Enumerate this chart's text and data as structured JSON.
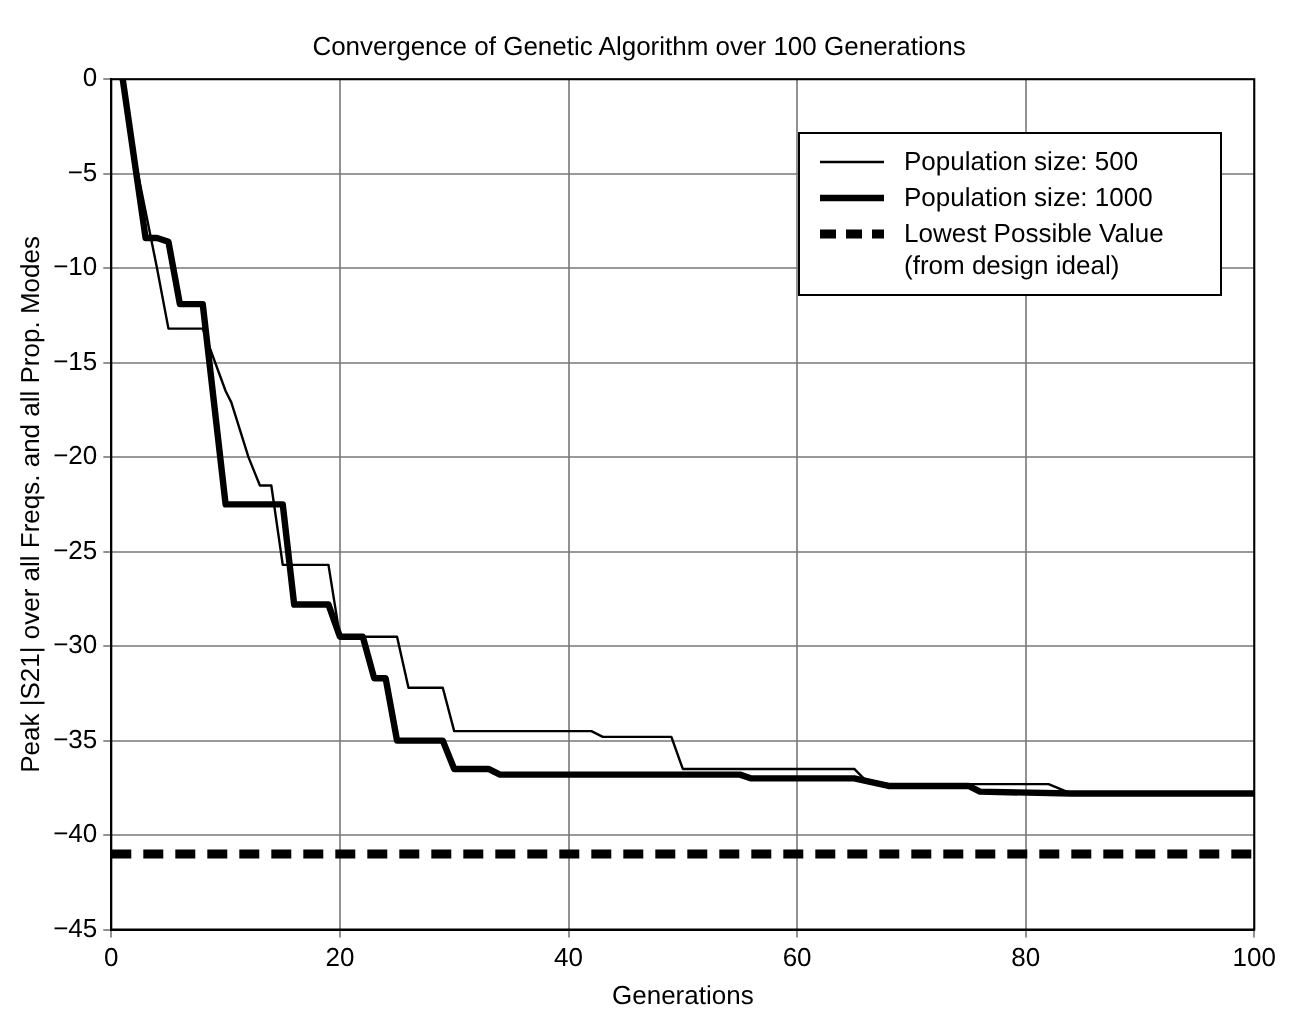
{
  "chart_data": {
    "type": "line",
    "title": "Convergence of Genetic Algorithm over 100 Generations",
    "xlabel": "Generations",
    "ylabel": "Peak |S21| over all Freqs. and all Prop. Modes",
    "series": [
      {
        "name": "Population size: 500",
        "color": "#000000",
        "x": [
          1,
          2,
          3,
          4,
          5,
          8,
          10,
          10.5,
          12,
          13,
          14,
          15,
          19,
          20,
          25,
          26,
          29,
          30,
          42,
          43,
          49,
          50,
          65,
          66,
          68,
          82,
          84,
          100
        ],
        "values": [
          0,
          -4,
          -7,
          -10,
          -13.2,
          -13.2,
          -16.5,
          -17.1,
          -20,
          -21.5,
          -21.5,
          -25.7,
          -25.7,
          -29.5,
          -29.5,
          -32.2,
          -32.2,
          -34.5,
          -34.5,
          -34.8,
          -34.8,
          -36.5,
          -36.5,
          -37.1,
          -37.3,
          -37.3,
          -37.8,
          -37.8
        ]
      },
      {
        "name": "Population size: 1000",
        "color": "#000000",
        "x": [
          1,
          3,
          4,
          5,
          6,
          8,
          10,
          15,
          16,
          19,
          20,
          22,
          23,
          24,
          25,
          29,
          30,
          33,
          34,
          55,
          56,
          65,
          68,
          75,
          76,
          84,
          100
        ],
        "values": [
          0,
          -8.4,
          -8.4,
          -8.6,
          -11.9,
          -11.9,
          -22.5,
          -22.5,
          -27.8,
          -27.8,
          -29.5,
          -29.5,
          -31.7,
          -31.7,
          -35,
          -35,
          -36.5,
          -36.5,
          -36.8,
          -36.8,
          -37,
          -37,
          -37.4,
          -37.4,
          -37.7,
          -37.8,
          -37.8
        ]
      }
    ],
    "ref_lines": [
      {
        "axis": "y",
        "value": -41,
        "label": "Lowest Possible Value (from design ideal)",
        "color": "#000000",
        "line_style": "dashed"
      }
    ],
    "xlim": [
      0,
      100
    ],
    "xticks": [
      0,
      20,
      40,
      60,
      80,
      100
    ],
    "ylim": [
      -45,
      0
    ],
    "yticks": [
      -45,
      -40,
      -35,
      -30,
      -25,
      -20,
      -15,
      -10,
      -5,
      0
    ],
    "grid": true,
    "legend": "top right",
    "marker": "none",
    "line_style": "solid"
  }
}
